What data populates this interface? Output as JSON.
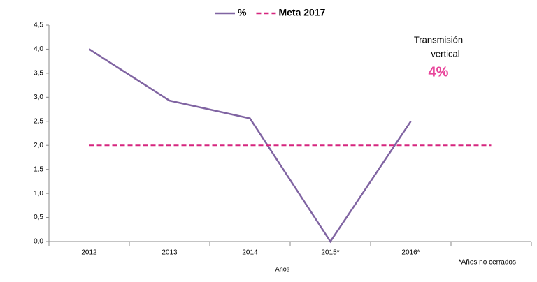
{
  "chart_data": {
    "type": "line",
    "categories": [
      "2012",
      "2013",
      "2014",
      "2015*",
      "2016*",
      null
    ],
    "series": [
      {
        "name": "%",
        "color": "#8064a2",
        "dash": false,
        "values": [
          4.0,
          2.93,
          2.56,
          0,
          2.5,
          null
        ]
      },
      {
        "name": "Meta 2017",
        "color": "#d6257f",
        "dash": true,
        "values": [
          2,
          2,
          2,
          2,
          2,
          2
        ]
      }
    ],
    "ylim": [
      0,
      4.5
    ],
    "yticks": [
      {
        "value": 0,
        "label": "0,0"
      },
      {
        "value": 0.5,
        "label": "0,5"
      },
      {
        "value": 1,
        "label": "1,0"
      },
      {
        "value": 1.5,
        "label": "1,5"
      },
      {
        "value": 2,
        "label": "2,0"
      },
      {
        "value": 2.5,
        "label": "2,5"
      },
      {
        "value": 3,
        "label": "3,0"
      },
      {
        "value": 3.5,
        "label": "3,5"
      },
      {
        "value": 4,
        "label": "4,0"
      },
      {
        "value": 4.5,
        "label": "4,5"
      }
    ],
    "xlabel": "Años",
    "annotations": [
      "Transmisión",
      "vertical",
      "4%",
      "*Años no cerrados"
    ],
    "legend": "top"
  }
}
